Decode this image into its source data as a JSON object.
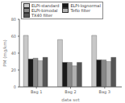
{
  "chart_data": {
    "type": "bar",
    "xlabel": "data set",
    "ylabel": "PM (mg/km)",
    "categories": [
      "Bag 1",
      "Bag 2",
      "Bag 3"
    ],
    "series": [
      {
        "name": "ELPI-standard",
        "color": "#c8c8c8",
        "values": [
          61,
          56,
          61
        ]
      },
      {
        "name": "ELPI-lognormal",
        "color": "#1a1a1a",
        "values": [
          33,
          29,
          32
        ]
      },
      {
        "name": "ELPI-bimodal",
        "color": "#888888",
        "values": [
          34,
          29,
          32
        ]
      },
      {
        "name": "Teflo filter",
        "color": "#b0b0b0",
        "values": [
          31,
          25,
          30
        ]
      },
      {
        "name": "TX40 filter",
        "color": "#555555",
        "values": [
          35,
          29,
          35
        ]
      }
    ],
    "ylim": [
      0,
      80
    ],
    "yticks": [
      0,
      20,
      40,
      60,
      80
    ],
    "grid": false,
    "legend": "upper left"
  }
}
